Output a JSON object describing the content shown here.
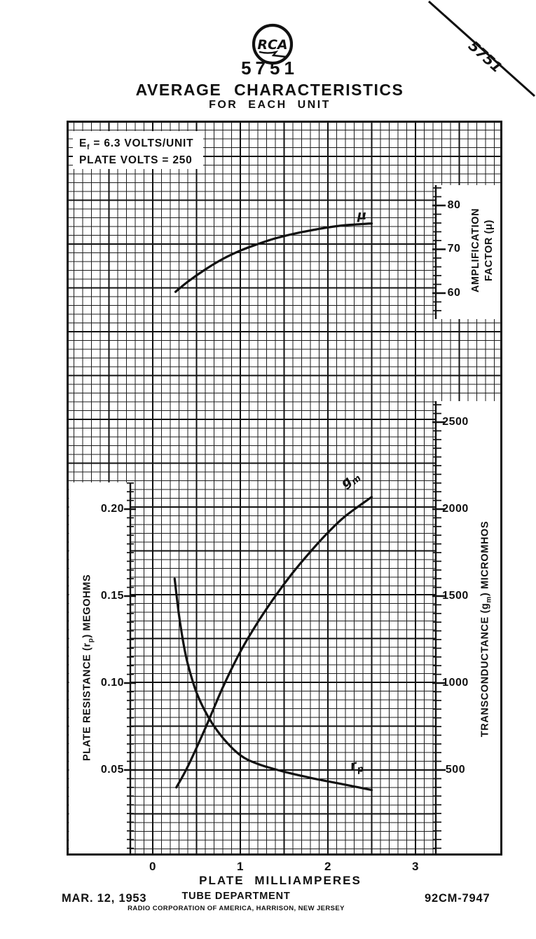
{
  "page": {
    "background": "#ffffff",
    "ink": "#111111"
  },
  "header": {
    "logo_text": "RCA",
    "tube_number": "5751",
    "title": "AVERAGE CHARACTERISTICS",
    "subtitle": "FOR EACH UNIT"
  },
  "corner_mark": {
    "label": "5751"
  },
  "conditions": {
    "line1_pre": "E",
    "line1_sub": "f",
    "line1_post": " = 6.3 VOLTS/UNIT",
    "line2": "PLATE VOLTS = 250"
  },
  "chart_data": {
    "type": "line",
    "title": "AVERAGE CHARACTERISTICS",
    "subtitle": "FOR EACH UNIT",
    "xlabel": "PLATE MILLIAMPERES",
    "x_tick_labels": [
      "0",
      "1",
      "2",
      "3"
    ],
    "x_tick_values": [
      0,
      1,
      2,
      3
    ],
    "grid": "fine graph paper, minor rules every 0.1 mA, major rules every 0.5 mA",
    "legend_position": "labels on curves",
    "axes": {
      "mu": {
        "side": "right-upper",
        "title_line1": "AMPLIFICATION",
        "title_line2": "FACTOR (μ)",
        "tick_labels": [
          "80",
          "70",
          "60"
        ],
        "tick_values": [
          80,
          70,
          60
        ]
      },
      "gm": {
        "side": "right-lower",
        "title_pre": "TRANSCONDUCTANCE (g",
        "title_sub": "m",
        "title_post": ") MICROMHOS",
        "tick_labels": [
          "2500",
          "2000",
          "1500",
          "1000",
          "500"
        ],
        "tick_values": [
          2500,
          2000,
          1500,
          1000,
          500
        ]
      },
      "rp": {
        "side": "left-inset",
        "title_pre": "PLATE RESISTANCE (r",
        "title_sub": "p",
        "title_post": ") MEGOHMS",
        "tick_labels": [
          "0.20",
          "0.15",
          "0.10",
          "0.05"
        ],
        "tick_values": [
          0.2,
          0.15,
          0.1,
          0.05
        ]
      }
    },
    "series": [
      {
        "name": "amplification-factor",
        "axis": "mu",
        "label_main": "μ",
        "label_sub": "",
        "points": [
          [
            0.26,
            60.3
          ],
          [
            0.4,
            62.6
          ],
          [
            0.6,
            65.4
          ],
          [
            0.8,
            67.8
          ],
          [
            1.0,
            69.7
          ],
          [
            1.2,
            71.2
          ],
          [
            1.4,
            72.5
          ],
          [
            1.6,
            73.5
          ],
          [
            1.8,
            74.3
          ],
          [
            2.0,
            75.0
          ],
          [
            2.2,
            75.5
          ],
          [
            2.5,
            75.9
          ]
        ]
      },
      {
        "name": "transconductance",
        "axis": "gm",
        "label_main": "g",
        "label_sub": "m",
        "points": [
          [
            0.27,
            400
          ],
          [
            0.4,
            520
          ],
          [
            0.6,
            740
          ],
          [
            0.8,
            975
          ],
          [
            1.0,
            1180
          ],
          [
            1.2,
            1350
          ],
          [
            1.4,
            1500
          ],
          [
            1.6,
            1635
          ],
          [
            1.8,
            1755
          ],
          [
            2.0,
            1865
          ],
          [
            2.2,
            1960
          ],
          [
            2.5,
            2070
          ]
        ]
      },
      {
        "name": "plate-resistance",
        "axis": "rp",
        "label_main": "r",
        "label_sub": "p",
        "points": [
          [
            0.25,
            0.16
          ],
          [
            0.3,
            0.139
          ],
          [
            0.35,
            0.123
          ],
          [
            0.4,
            0.111
          ],
          [
            0.5,
            0.0945
          ],
          [
            0.64,
            0.08
          ],
          [
            0.8,
            0.0685
          ],
          [
            1.0,
            0.0585
          ],
          [
            1.2,
            0.0535
          ],
          [
            1.5,
            0.049
          ],
          [
            1.8,
            0.0455
          ],
          [
            2.1,
            0.0425
          ],
          [
            2.5,
            0.0385
          ]
        ]
      }
    ]
  },
  "footer": {
    "date": "MAR. 12, 1953",
    "department": "TUBE DEPARTMENT",
    "organization": "RADIO CORPORATION OF AMERICA, HARRISON, NEW JERSEY",
    "drawing_number": "92CM-7947"
  }
}
